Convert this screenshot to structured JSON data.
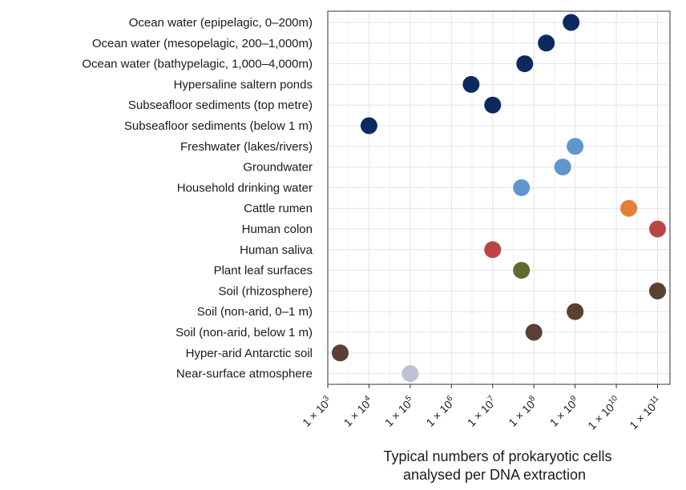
{
  "chart_data": {
    "type": "scatter",
    "xlabel_lines": [
      "Typical numbers of prokaryotic cells",
      "analysed per DNA extraction"
    ],
    "x_scale": "log",
    "xlim": [
      1000,
      200000000000
    ],
    "grid": true,
    "x_ticks": [
      {
        "value": 1000,
        "mantissa": "1",
        "exponent": "3"
      },
      {
        "value": 10000,
        "mantissa": "1",
        "exponent": "4"
      },
      {
        "value": 100000,
        "mantissa": "1",
        "exponent": "5"
      },
      {
        "value": 1000000,
        "mantissa": "1",
        "exponent": "6"
      },
      {
        "value": 10000000,
        "mantissa": "1",
        "exponent": "7"
      },
      {
        "value": 100000000,
        "mantissa": "1",
        "exponent": "8"
      },
      {
        "value": 1000000000,
        "mantissa": "1",
        "exponent": "9"
      },
      {
        "value": 10000000000,
        "mantissa": "1",
        "exponent": "10"
      },
      {
        "value": 100000000000,
        "mantissa": "1",
        "exponent": "11"
      }
    ],
    "points": [
      {
        "category": "Ocean water (epipelagic, 0–200m)",
        "value": 800000000,
        "color": "#0d2a60"
      },
      {
        "category": "Ocean water (mesopelagic, 200–1,000m)",
        "value": 200000000,
        "color": "#0d2a60"
      },
      {
        "category": "Ocean water (bathypelagic, 1,000–4,000m)",
        "value": 60000000,
        "color": "#0d2a60"
      },
      {
        "category": "Hypersaline saltern ponds",
        "value": 3000000,
        "color": "#0d2a60"
      },
      {
        "category": "Subseafloor sediments (top metre)",
        "value": 10000000,
        "color": "#0d2a60"
      },
      {
        "category": "Subseafloor sediments (below 1 m)",
        "value": 10000,
        "color": "#0d2a60"
      },
      {
        "category": "Freshwater (lakes/rivers)",
        "value": 1000000000,
        "color": "#5f96cc"
      },
      {
        "category": "Groundwater",
        "value": 500000000,
        "color": "#5f96cc"
      },
      {
        "category": "Household drinking water",
        "value": 50000000,
        "color": "#5f96cc"
      },
      {
        "category": "Cattle rumen",
        "value": 20000000000,
        "color": "#e57f35"
      },
      {
        "category": "Human colon",
        "value": 100000000000,
        "color": "#bb4545"
      },
      {
        "category": "Human saliva",
        "value": 10000000,
        "color": "#bb4545"
      },
      {
        "category": "Plant leaf surfaces",
        "value": 50000000,
        "color": "#5e6b2f"
      },
      {
        "category": "Soil (rhizosphere)",
        "value": 100000000000,
        "color": "#5a3f32"
      },
      {
        "category": "Soil (non-arid, 0–1 m)",
        "value": 1000000000,
        "color": "#5a3f32"
      },
      {
        "category": "Soil (non-arid, below 1 m)",
        "value": 100000000,
        "color": "#5a3f32"
      },
      {
        "category": "Hyper-arid Antarctic soil",
        "value": 2000,
        "color": "#5a3f32"
      },
      {
        "category": "Near-surface atmosphere",
        "value": 100000,
        "color": "#bcc3d4"
      }
    ]
  }
}
